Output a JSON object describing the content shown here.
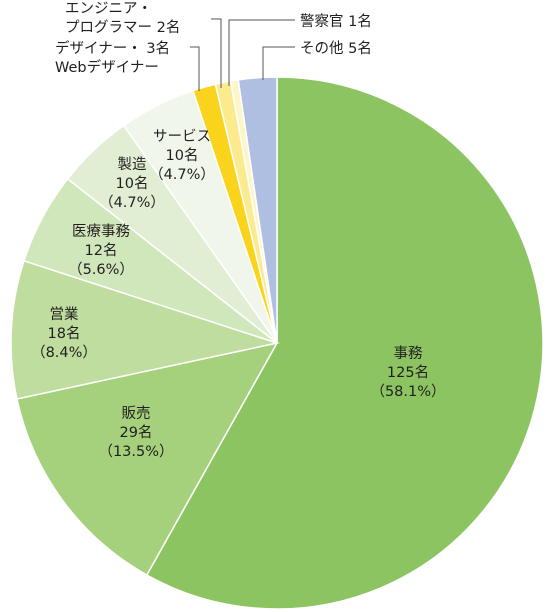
{
  "chart_data": {
    "type": "pie",
    "title": "",
    "unit_suffix": "名",
    "start_angle_deg": 0,
    "direction": "clockwise",
    "slices": [
      {
        "label": "事務",
        "value": 125,
        "value_text": "125名",
        "pct_text": "（58.1%）",
        "color": "#8cc462",
        "label_placement": "inside"
      },
      {
        "label": "販売",
        "value": 29,
        "value_text": "29名",
        "pct_text": "（13.5%）",
        "color": "#a5d17d",
        "label_placement": "inside"
      },
      {
        "label": "営業",
        "value": 18,
        "value_text": "18名",
        "pct_text": "（8.4%）",
        "color": "#bedd9f",
        "label_placement": "inside"
      },
      {
        "label": "医療事務",
        "value": 12,
        "value_text": "12名",
        "pct_text": "（5.6%）",
        "color": "#d0e6bb",
        "label_placement": "inside"
      },
      {
        "label": "製造",
        "value": 10,
        "value_text": "10名",
        "pct_text": "（4.7%）",
        "color": "#e1eed4",
        "label_placement": "inside"
      },
      {
        "label": "サービス",
        "value": 10,
        "value_text": "10名",
        "pct_text": "（4.7%）",
        "color": "#f1f6ea",
        "label_placement": "inside"
      },
      {
        "label": "デザイナー・ Webデザイナー",
        "label_lines": [
          "デザイナー・ 3名",
          "Webデザイナー"
        ],
        "value": 3,
        "color": "#fad31c",
        "label_placement": "outside"
      },
      {
        "label": "エンジニア・ プログラマー",
        "label_lines": [
          "エンジニア・",
          "プログラマー 2名"
        ],
        "value": 2,
        "color": "#fcea8e",
        "label_placement": "outside"
      },
      {
        "label": "警察官",
        "label_lines": [
          "警察官 1名"
        ],
        "value": 1,
        "color": "#fdf6c8",
        "label_placement": "outside"
      },
      {
        "label": "その他",
        "label_lines": [
          "その他 5名"
        ],
        "value": 5,
        "color": "#aebfe2",
        "label_placement": "outside"
      }
    ]
  }
}
